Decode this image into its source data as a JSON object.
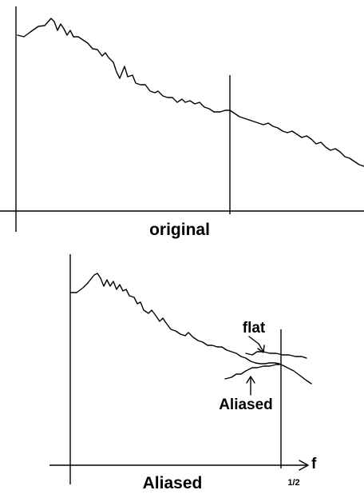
{
  "top_panel": {
    "caption": "original"
  },
  "bottom_panel": {
    "caption": "Aliased",
    "curve_labels": {
      "flat": "flat",
      "aliased": "Aliased"
    },
    "x_axis": {
      "label": "f",
      "tick_label": "1/2"
    }
  }
}
